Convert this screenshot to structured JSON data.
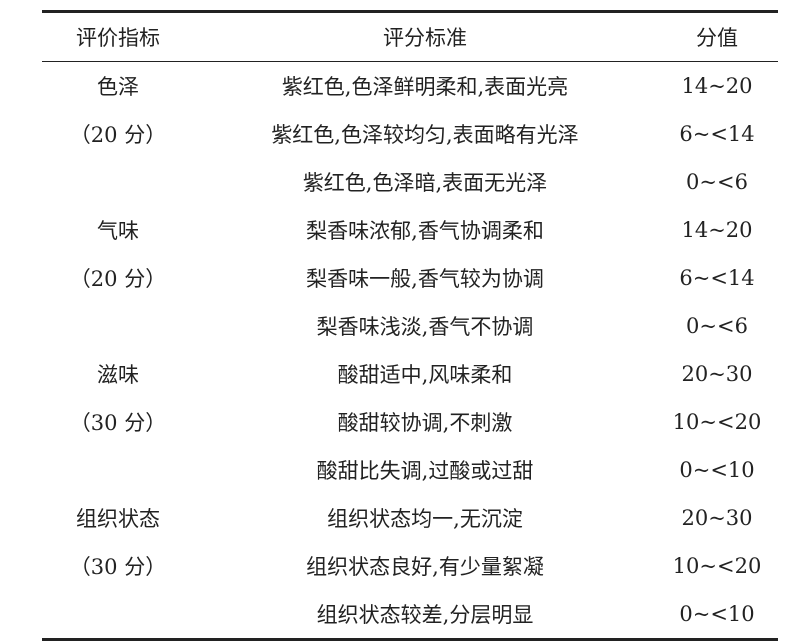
{
  "table": {
    "headers": [
      "评价指标",
      "评分标准",
      "分值"
    ],
    "rows": [
      [
        "色泽",
        "紫红色,色泽鲜明柔和,表面光亮",
        "14~20"
      ],
      [
        "（20 分）",
        "紫红色,色泽较均匀,表面略有光泽",
        "6~<14"
      ],
      [
        "",
        "紫红色,色泽暗,表面无光泽",
        "0~<6"
      ],
      [
        "气味",
        "梨香味浓郁,香气协调柔和",
        "14~20"
      ],
      [
        "（20 分）",
        "梨香味一般,香气较为协调",
        "6~<14"
      ],
      [
        "",
        "梨香味浅淡,香气不协调",
        "0~<6"
      ],
      [
        "滋味",
        "酸甜适中,风味柔和",
        "20~30"
      ],
      [
        "（30 分）",
        "酸甜较协调,不刺激",
        "10~<20"
      ],
      [
        "",
        "酸甜比失调,过酸或过甜",
        "0~<10"
      ],
      [
        "组织状态",
        "组织状态均一,无沉淀",
        "20~30"
      ],
      [
        "（30 分）",
        "组织状态良好,有少量絮凝",
        "10~<20"
      ],
      [
        "",
        "组织状态较差,分层明显",
        "0~<10"
      ]
    ]
  }
}
